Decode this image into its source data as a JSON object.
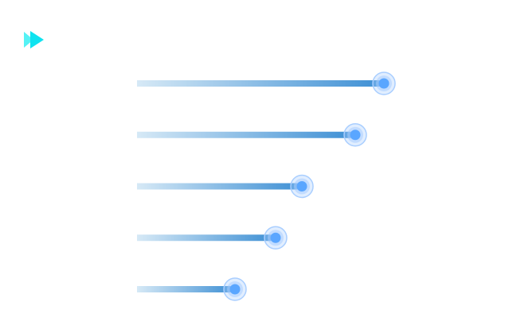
{
  "logo": {
    "icon": "play-skip-icon",
    "colors": [
      "#37f0f3",
      "#0fe3f0"
    ]
  },
  "chart_data": {
    "type": "bar",
    "orientation": "horizontal",
    "style": "lollipop-gradient",
    "categories": [
      "",
      "",
      "",
      "",
      ""
    ],
    "values": [
      310,
      274,
      207,
      174,
      123
    ],
    "xlim": [
      0,
      310
    ],
    "grid": false,
    "axes_visible": false,
    "colors": {
      "bar_start": "#d6e9f6",
      "bar_end": "#3d8fd4",
      "dot_core": "#5aa6ff",
      "dot_halo": "#a9ceff"
    }
  }
}
